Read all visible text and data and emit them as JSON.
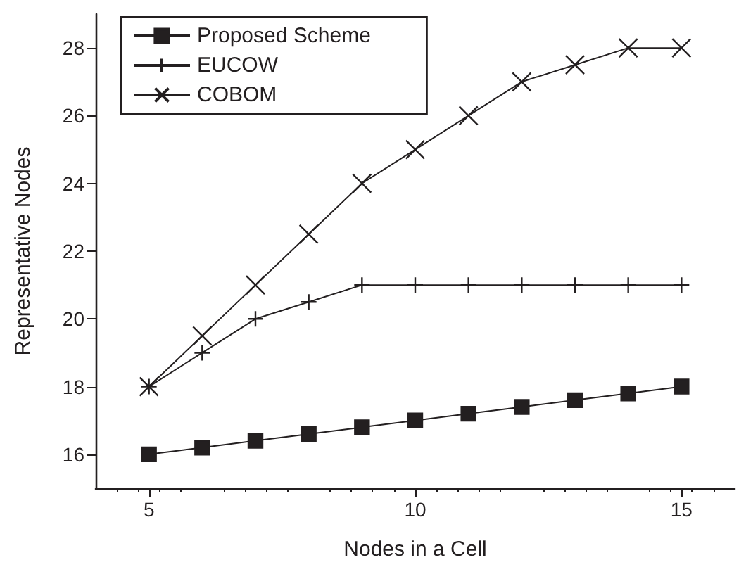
{
  "chart_data": {
    "type": "line",
    "xlabel": "Nodes in a Cell",
    "ylabel": "Representative Nodes",
    "x": [
      5,
      6,
      7,
      8,
      9,
      10,
      11,
      12,
      13,
      14,
      15
    ],
    "series": [
      {
        "name": "Proposed Scheme",
        "color": "#231f20",
        "marker": "square",
        "values": [
          16,
          16.2,
          16.4,
          16.6,
          16.8,
          17,
          17.2,
          17.4,
          17.6,
          17.8,
          18
        ]
      },
      {
        "name": "EUCOW",
        "color": "#231f20",
        "marker": "plus",
        "values": [
          18,
          19,
          20,
          20.5,
          21,
          21,
          21,
          21,
          21,
          21,
          21
        ]
      },
      {
        "name": "COBOM",
        "color": "#231f20",
        "marker": "cross",
        "values": [
          18,
          19.5,
          21,
          22.5,
          24,
          25,
          26,
          27,
          27.5,
          28,
          28
        ]
      }
    ],
    "xlim": [
      4,
      16
    ],
    "xticks": [
      5,
      10,
      15
    ],
    "ylim": [
      15,
      29
    ],
    "yticks": [
      16,
      18,
      20,
      22,
      24,
      26,
      28
    ],
    "grid": false,
    "legend": "top left",
    "line_style": "solid"
  }
}
